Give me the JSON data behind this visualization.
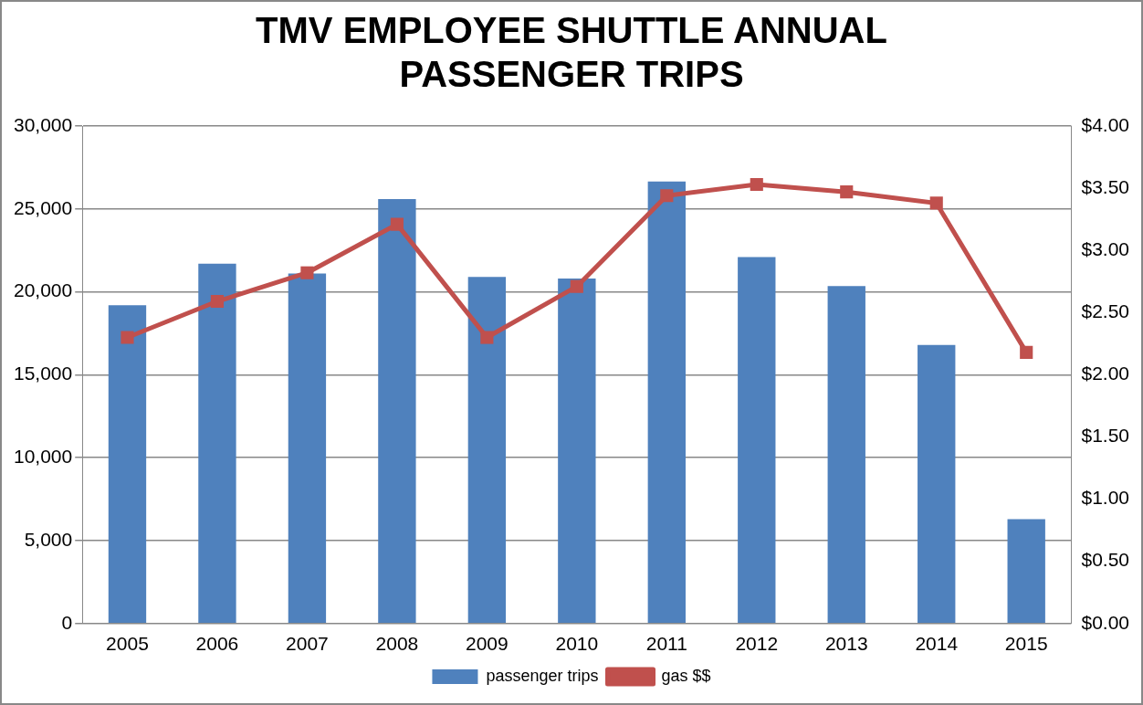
{
  "chart_data": {
    "type": "bar",
    "title": "TMV EMPLOYEE SHUTTLE ANNUAL PASSENGER TRIPS",
    "categories": [
      "2005",
      "2006",
      "2007",
      "2008",
      "2009",
      "2010",
      "2011",
      "2012",
      "2013",
      "2014",
      "2015"
    ],
    "series": [
      {
        "name": "passenger trips",
        "color": "#4f81bd",
        "values": [
          19200,
          21700,
          21100,
          25600,
          20900,
          20800,
          26650,
          22100,
          20350,
          16800,
          6300
        ]
      },
      {
        "name": "gas $$",
        "type": "line",
        "axis": "y2",
        "color": "#c0504d",
        "marker": "square",
        "values": [
          2.3,
          2.59,
          2.82,
          3.21,
          2.3,
          2.71,
          3.44,
          3.53,
          3.47,
          3.38,
          2.18
        ]
      }
    ],
    "ylim": [
      0,
      30000
    ],
    "yticks": [
      {
        "value": 0,
        "label": "0"
      },
      {
        "value": 5000,
        "label": "5,000"
      },
      {
        "value": 10000,
        "label": "10,000"
      },
      {
        "value": 15000,
        "label": "15,000"
      },
      {
        "value": 20000,
        "label": "20,000"
      },
      {
        "value": 25000,
        "label": "25,000"
      },
      {
        "value": 30000,
        "label": "30,000"
      }
    ],
    "y2lim": [
      0,
      4
    ],
    "y2ticks": [
      {
        "value": 0,
        "label": "$0.00"
      },
      {
        "value": 0.5,
        "label": "$0.50"
      },
      {
        "value": 1,
        "label": "$1.00"
      },
      {
        "value": 1.5,
        "label": "$1.50"
      },
      {
        "value": 2,
        "label": "$2.00"
      },
      {
        "value": 2.5,
        "label": "$2.50"
      },
      {
        "value": 3,
        "label": "$3.00"
      },
      {
        "value": 3.5,
        "label": "$3.50"
      },
      {
        "value": 4,
        "label": "$4.00"
      }
    ],
    "grid": "y",
    "legend": "bottom"
  }
}
